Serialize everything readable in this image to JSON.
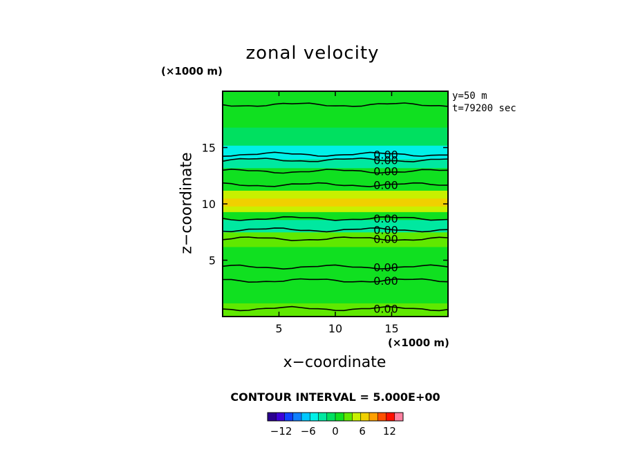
{
  "chart_data": {
    "type": "heatmap",
    "title": "zonal velocity",
    "xlabel": "x−coordinate",
    "ylabel": "z−coordinate",
    "x_unit": "(×1000 m)",
    "z_unit": "(×1000 m)",
    "xlim": [
      0,
      20
    ],
    "ylim": [
      0,
      20
    ],
    "x_ticks": [
      5,
      10,
      15
    ],
    "x_tick_labels": [
      "5",
      "10",
      "15"
    ],
    "y_ticks": [
      5,
      10,
      15
    ],
    "y_tick_labels": [
      "5",
      "10",
      "15"
    ],
    "annotations": [
      "y=50 m",
      "t=79200 sec"
    ],
    "contour_interval_text": "CONTOUR INTERVAL = 5.000E+00",
    "contour_label": "0.00",
    "contour_label_z": [
      14.4,
      13.9,
      12.9,
      11.7,
      8.7,
      7.7,
      6.9,
      4.4,
      3.2,
      0.7
    ],
    "zero_contours_z": [
      18.8,
      14.4,
      13.9,
      12.9,
      11.7,
      8.7,
      7.7,
      6.9,
      4.4,
      3.2,
      0.7
    ],
    "bands": [
      {
        "z": [
          0,
          1.2
        ],
        "value": 2
      },
      {
        "z": [
          1.2,
          3.0
        ],
        "value": 1
      },
      {
        "z": [
          3.0,
          4.4
        ],
        "value": 0
      },
      {
        "z": [
          4.4,
          6.2
        ],
        "value": 1
      },
      {
        "z": [
          6.2,
          7.5
        ],
        "value": 2
      },
      {
        "z": [
          7.5,
          8.6
        ],
        "value": -2
      },
      {
        "z": [
          8.6,
          9.3
        ],
        "value": 1
      },
      {
        "z": [
          9.3,
          9.8
        ],
        "value": 5
      },
      {
        "z": [
          9.8,
          10.5
        ],
        "value": 7
      },
      {
        "z": [
          10.5,
          11.2
        ],
        "value": 4
      },
      {
        "z": [
          11.2,
          12.4
        ],
        "value": 1
      },
      {
        "z": [
          12.4,
          13.2
        ],
        "value": 0
      },
      {
        "z": [
          13.2,
          14.0
        ],
        "value": -2
      },
      {
        "z": [
          14.0,
          15.2
        ],
        "value": -4
      },
      {
        "z": [
          15.2,
          16.8
        ],
        "value": -1
      },
      {
        "z": [
          16.8,
          20.0
        ],
        "value": 1
      }
    ],
    "colorbar": {
      "tick_labels": [
        "−12",
        "−6",
        "0",
        "6",
        "12"
      ],
      "tick_values": [
        -12,
        -6,
        0,
        6,
        12
      ],
      "range": [
        -15,
        15
      ],
      "colors": [
        "#2a0090",
        "#3d00d8",
        "#1040ff",
        "#1080ff",
        "#00c8ff",
        "#00f0e8",
        "#00e8a0",
        "#00e060",
        "#10e020",
        "#60e800",
        "#c8f000",
        "#f0d000",
        "#ffa000",
        "#ff5000",
        "#ff1000",
        "#ff80a0"
      ]
    }
  }
}
